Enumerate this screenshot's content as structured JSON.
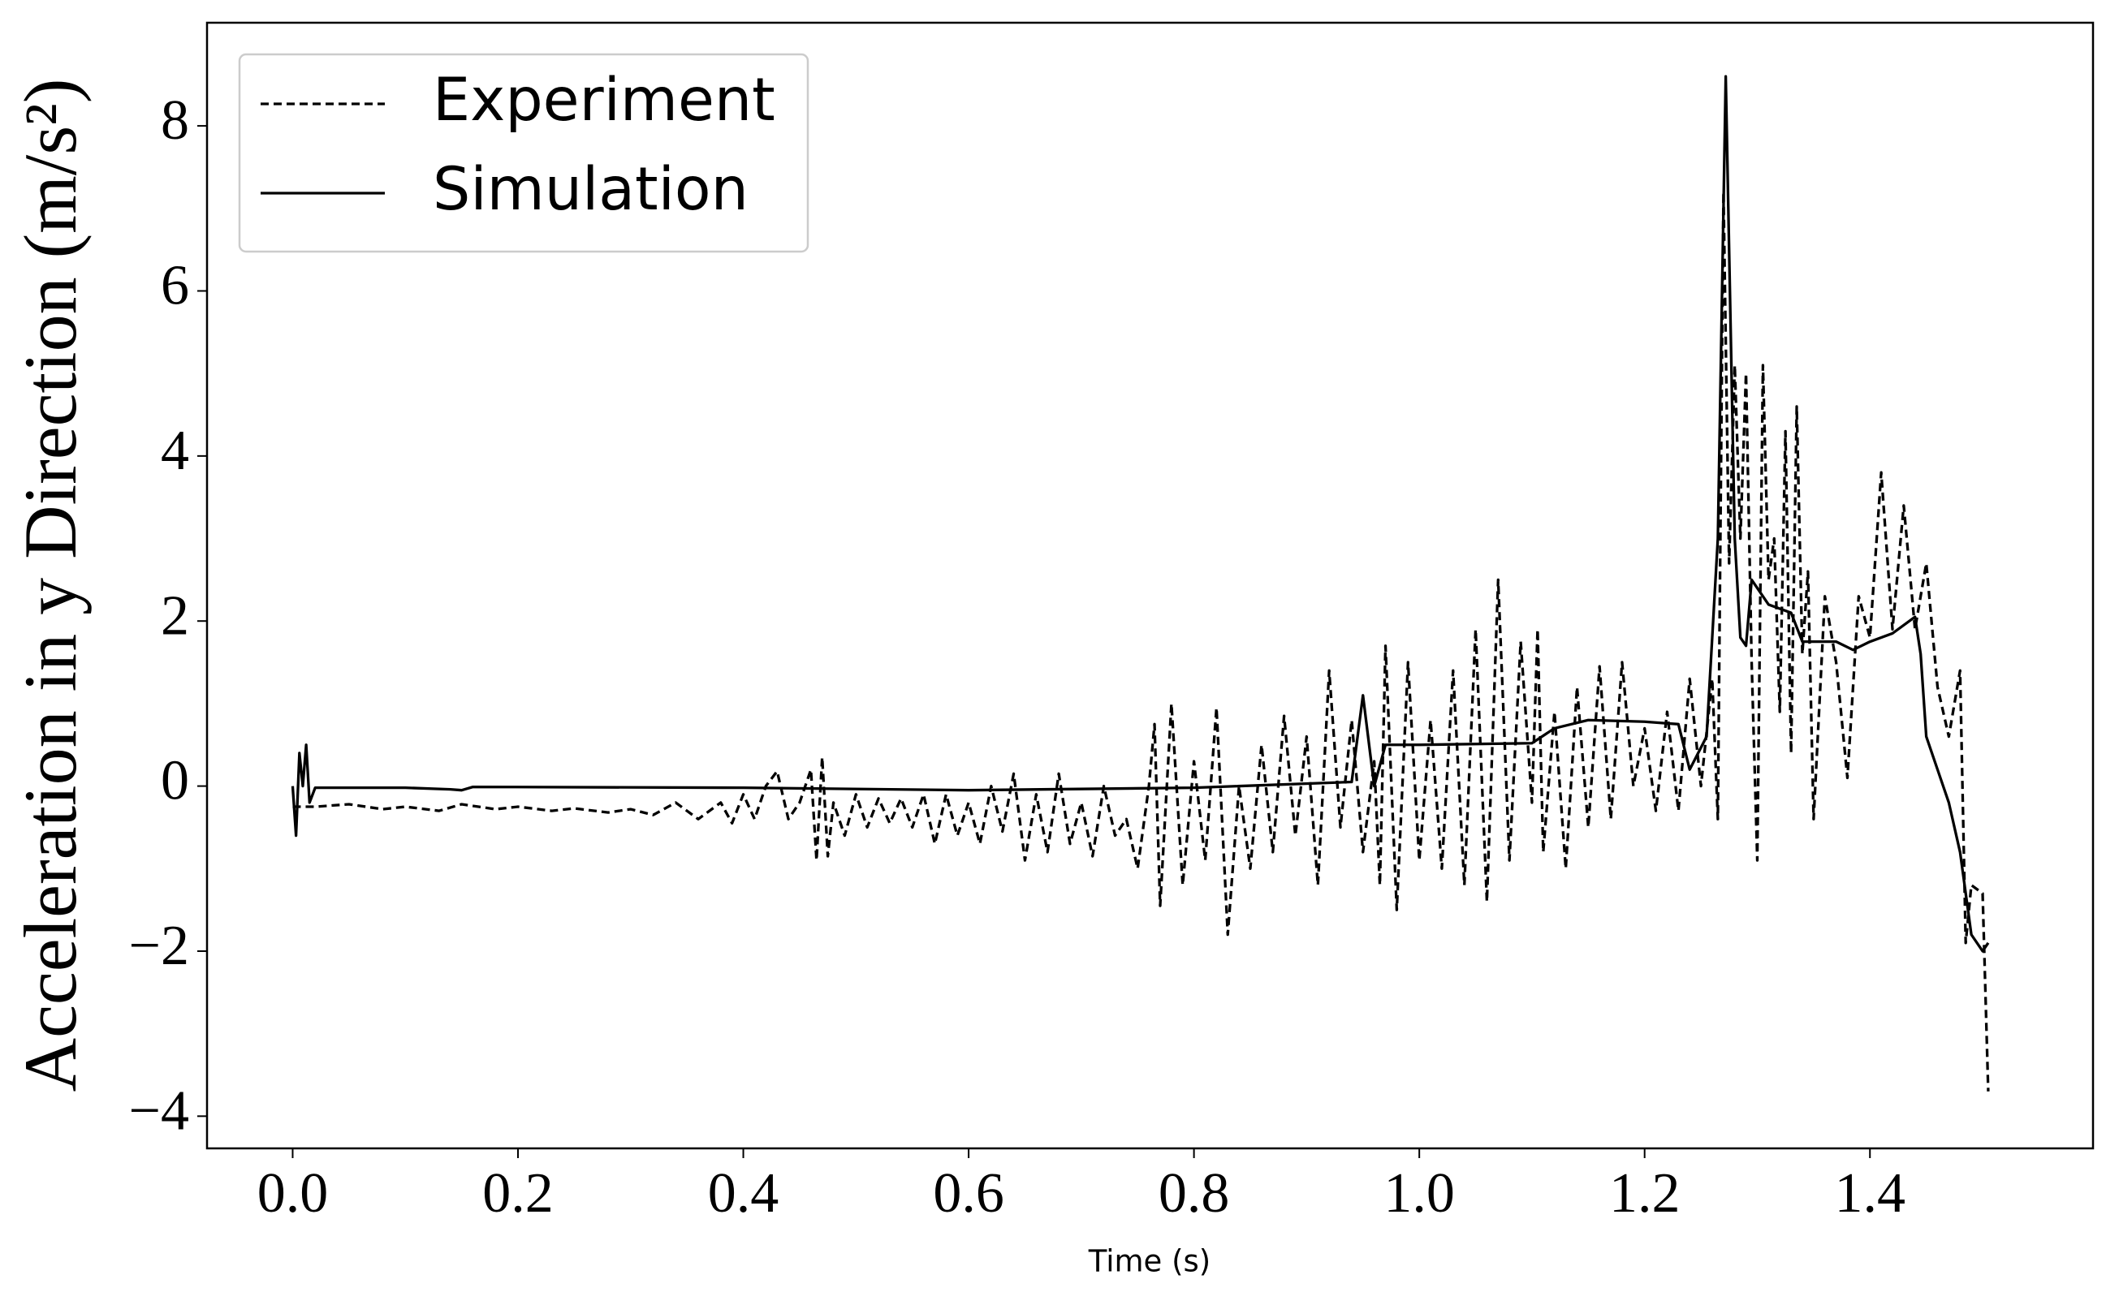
{
  "chart_data": {
    "type": "line",
    "xlabel": "Time (s)",
    "ylabel": "Acceleration in y Direction (m/s²)",
    "xlim": [
      -0.076,
      1.598
    ],
    "ylim": [
      -4.39,
      9.25
    ],
    "xticks": [
      {
        "value": 0,
        "label": "0.0"
      },
      {
        "value": 0.2,
        "label": "0.2"
      },
      {
        "value": 0.4,
        "label": "0.4"
      },
      {
        "value": 0.6,
        "label": "0.6"
      },
      {
        "value": 0.8,
        "label": "0.8"
      },
      {
        "value": 1.0,
        "label": "1.0"
      },
      {
        "value": 1.2,
        "label": "1.2"
      },
      {
        "value": 1.4,
        "label": "1.4"
      }
    ],
    "yticks": [
      {
        "value": -4,
        "label": "−4"
      },
      {
        "value": -2,
        "label": "−2"
      },
      0,
      2,
      4,
      6,
      8
    ],
    "grid": false,
    "legend": "upper left",
    "series": [
      {
        "name": "Experiment",
        "color": "#000000",
        "linestyle": "dashed",
        "x": [
          0.0,
          0.02,
          0.05,
          0.08,
          0.1,
          0.13,
          0.15,
          0.18,
          0.2,
          0.23,
          0.25,
          0.28,
          0.3,
          0.32,
          0.34,
          0.36,
          0.38,
          0.39,
          0.4,
          0.41,
          0.42,
          0.43,
          0.44,
          0.45,
          0.46,
          0.465,
          0.47,
          0.475,
          0.48,
          0.49,
          0.5,
          0.51,
          0.52,
          0.53,
          0.54,
          0.55,
          0.56,
          0.57,
          0.58,
          0.59,
          0.6,
          0.61,
          0.62,
          0.63,
          0.64,
          0.65,
          0.66,
          0.67,
          0.68,
          0.69,
          0.7,
          0.71,
          0.72,
          0.73,
          0.74,
          0.75,
          0.76,
          0.765,
          0.77,
          0.78,
          0.79,
          0.8,
          0.81,
          0.82,
          0.83,
          0.84,
          0.85,
          0.86,
          0.87,
          0.88,
          0.89,
          0.9,
          0.91,
          0.92,
          0.93,
          0.94,
          0.95,
          0.96,
          0.965,
          0.97,
          0.98,
          0.99,
          1.0,
          1.01,
          1.02,
          1.03,
          1.04,
          1.05,
          1.06,
          1.07,
          1.08,
          1.09,
          1.1,
          1.105,
          1.11,
          1.12,
          1.13,
          1.14,
          1.15,
          1.16,
          1.17,
          1.18,
          1.19,
          1.2,
          1.21,
          1.22,
          1.23,
          1.24,
          1.25,
          1.26,
          1.265,
          1.27,
          1.275,
          1.28,
          1.285,
          1.29,
          1.295,
          1.3,
          1.305,
          1.31,
          1.315,
          1.32,
          1.325,
          1.33,
          1.335,
          1.34,
          1.345,
          1.35,
          1.36,
          1.37,
          1.38,
          1.39,
          1.4,
          1.41,
          1.42,
          1.43,
          1.44,
          1.45,
          1.46,
          1.47,
          1.48,
          1.485,
          1.49,
          1.5,
          1.505
        ],
        "values": [
          -0.25,
          -0.25,
          -0.22,
          -0.28,
          -0.25,
          -0.3,
          -0.22,
          -0.28,
          -0.25,
          -0.3,
          -0.27,
          -0.32,
          -0.28,
          -0.35,
          -0.2,
          -0.4,
          -0.2,
          -0.45,
          -0.1,
          -0.4,
          0.0,
          0.18,
          -0.4,
          -0.2,
          0.2,
          -0.9,
          0.35,
          -0.85,
          -0.2,
          -0.6,
          -0.1,
          -0.5,
          -0.15,
          -0.45,
          -0.15,
          -0.5,
          -0.1,
          -0.7,
          -0.1,
          -0.6,
          -0.2,
          -0.7,
          0.0,
          -0.55,
          0.15,
          -0.9,
          -0.1,
          -0.8,
          0.15,
          -0.7,
          -0.2,
          -0.85,
          0.0,
          -0.6,
          -0.4,
          -1.0,
          0.0,
          0.75,
          -1.45,
          1.0,
          -1.2,
          0.3,
          -0.9,
          0.95,
          -1.8,
          0.0,
          -1.0,
          0.5,
          -0.8,
          0.85,
          -0.6,
          0.6,
          -1.2,
          1.4,
          -0.5,
          0.8,
          -0.8,
          0.3,
          -1.2,
          1.7,
          -1.5,
          1.5,
          -0.9,
          0.8,
          -1.0,
          1.4,
          -1.2,
          1.9,
          -1.4,
          2.5,
          -0.9,
          1.75,
          -0.2,
          1.9,
          -0.8,
          0.9,
          -1.0,
          1.2,
          -0.5,
          1.45,
          -0.4,
          1.5,
          0.0,
          0.7,
          -0.3,
          0.9,
          -0.3,
          1.3,
          0.0,
          1.3,
          -0.4,
          7.2,
          2.7,
          5.1,
          3.0,
          5.0,
          1.5,
          -0.9,
          5.1,
          2.5,
          3.0,
          0.9,
          4.3,
          0.4,
          4.6,
          1.6,
          2.6,
          -0.4,
          2.3,
          1.5,
          0.1,
          2.3,
          1.8,
          3.8,
          1.9,
          3.4,
          1.9,
          2.7,
          1.2,
          0.6,
          1.4,
          -1.9,
          -1.2,
          -1.3,
          -3.7
        ]
      },
      {
        "name": "Simulation",
        "color": "#000000",
        "linestyle": "solid",
        "x": [
          0.0,
          0.003,
          0.006,
          0.009,
          0.012,
          0.015,
          0.02,
          0.1,
          0.14,
          0.15,
          0.16,
          0.4,
          0.6,
          0.8,
          0.94,
          0.95,
          0.96,
          0.97,
          1.0,
          1.1,
          1.12,
          1.15,
          1.2,
          1.23,
          1.24,
          1.255,
          1.265,
          1.272,
          1.28,
          1.285,
          1.29,
          1.295,
          1.31,
          1.33,
          1.34,
          1.37,
          1.385,
          1.4,
          1.42,
          1.44,
          1.445,
          1.45,
          1.46,
          1.47,
          1.48,
          1.49,
          1.5,
          1.505
        ],
        "values": [
          0.0,
          -0.6,
          0.4,
          0.0,
          0.5,
          -0.2,
          -0.02,
          -0.02,
          -0.04,
          -0.05,
          -0.01,
          -0.02,
          -0.05,
          -0.02,
          0.05,
          1.1,
          0.0,
          0.5,
          0.5,
          0.52,
          0.7,
          0.8,
          0.78,
          0.75,
          0.2,
          0.6,
          3.0,
          8.6,
          3.0,
          1.8,
          1.7,
          2.5,
          2.2,
          2.1,
          1.75,
          1.75,
          1.65,
          1.75,
          1.85,
          2.05,
          1.6,
          0.6,
          0.2,
          -0.2,
          -0.8,
          -1.8,
          -2.0,
          -1.9
        ]
      }
    ]
  }
}
